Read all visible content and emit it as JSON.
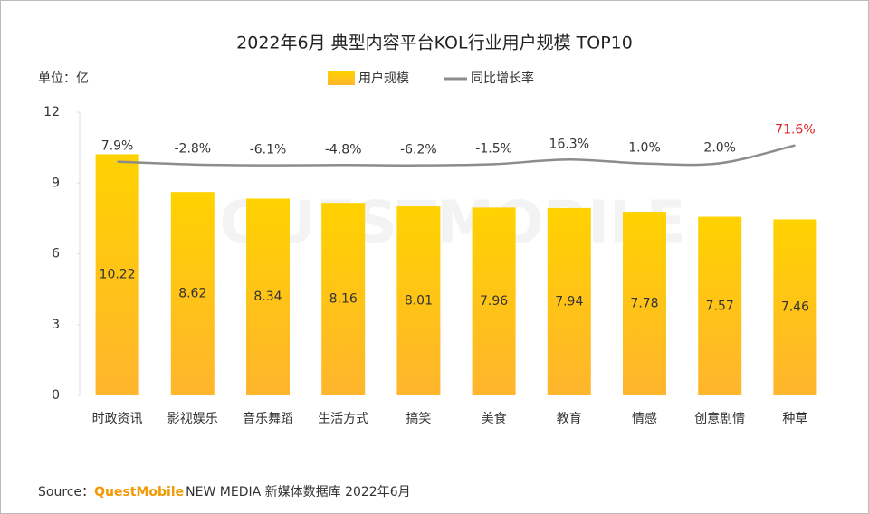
{
  "chart_data": {
    "type": "bar",
    "title": "2022年6月 典型内容平台KOL行业用户规模 TOP10",
    "unit_label": "单位：亿",
    "watermark": "QUESTMOBILE",
    "categories": [
      "时政资讯",
      "影视娱乐",
      "音乐舞蹈",
      "生活方式",
      "搞笑",
      "美食",
      "教育",
      "情感",
      "创意剧情",
      "种草"
    ],
    "series": [
      {
        "name": "用户规模",
        "type": "bar",
        "color": "#ffc20e",
        "gradient": [
          "#ffd200",
          "#ffb52d"
        ],
        "values": [
          10.22,
          8.62,
          8.34,
          8.16,
          8.01,
          7.96,
          7.94,
          7.78,
          7.57,
          7.46
        ]
      },
      {
        "name": "同比增长率",
        "type": "line",
        "axis": "y2",
        "color": "#8c8c8c",
        "values": [
          7.9,
          -2.8,
          -6.1,
          -4.8,
          -6.2,
          -1.5,
          16.3,
          1.0,
          2.0,
          71.6
        ],
        "value_labels": [
          "7.9%",
          "-2.8%",
          "-6.1%",
          "-4.8%",
          "-6.2%",
          "-1.5%",
          "16.3%",
          "1.0%",
          "2.0%",
          "71.6%"
        ],
        "value_label_colors": [
          "#333333",
          "#333333",
          "#333333",
          "#333333",
          "#333333",
          "#333333",
          "#333333",
          "#333333",
          "#333333",
          "#e02020"
        ]
      }
    ],
    "ylim": [
      0,
      12
    ],
    "yticks": [
      0,
      3,
      6,
      9,
      12
    ],
    "y2lim": [
      -900,
      200
    ],
    "grid": false,
    "legend": "top",
    "source": {
      "label": "Source：",
      "brand": "QuestMobile",
      "brand_color": "#f39800",
      "text": "NEW MEDIA 新媒体数据库 2022年6月"
    }
  }
}
